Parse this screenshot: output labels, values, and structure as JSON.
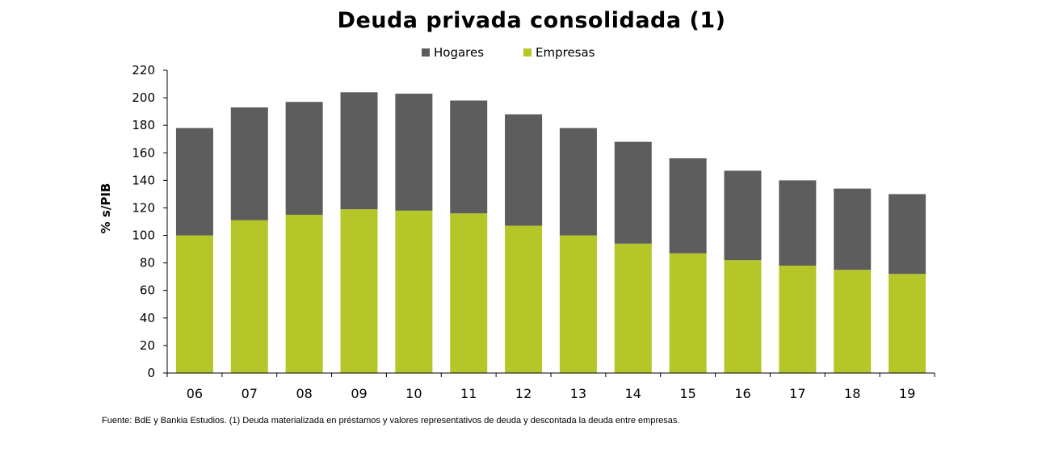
{
  "chart_data": {
    "type": "bar",
    "stacked": true,
    "title": "Deuda privada consolidada (1)",
    "ylabel": "% s/PIB",
    "xlabel": "",
    "ylim": [
      0,
      220
    ],
    "yticks": [
      0,
      20,
      40,
      60,
      80,
      100,
      120,
      140,
      160,
      180,
      200,
      220
    ],
    "categories": [
      "06",
      "07",
      "08",
      "09",
      "10",
      "11",
      "12",
      "13",
      "14",
      "15",
      "16",
      "17",
      "18",
      "19"
    ],
    "series": [
      {
        "name": "Empresas",
        "color": "#b5c629",
        "values": [
          100,
          111,
          115,
          119,
          118,
          116,
          107,
          100,
          94,
          87,
          82,
          78,
          75,
          72
        ]
      },
      {
        "name": "Hogares",
        "color": "#5d5d5d",
        "values": [
          78,
          82,
          82,
          85,
          85,
          82,
          81,
          78,
          74,
          69,
          65,
          62,
          59,
          58
        ]
      }
    ],
    "legend": [
      {
        "name": "Hogares",
        "color": "#5d5d5d"
      },
      {
        "name": "Empresas",
        "color": "#b5c629"
      }
    ],
    "legend_position": "top-center",
    "grid": false
  },
  "footnote": "Fuente: BdE y Bankia Estudios. (1) Deuda materializada en préstamos y valores representativos de deuda y descontada la deuda entre empresas."
}
